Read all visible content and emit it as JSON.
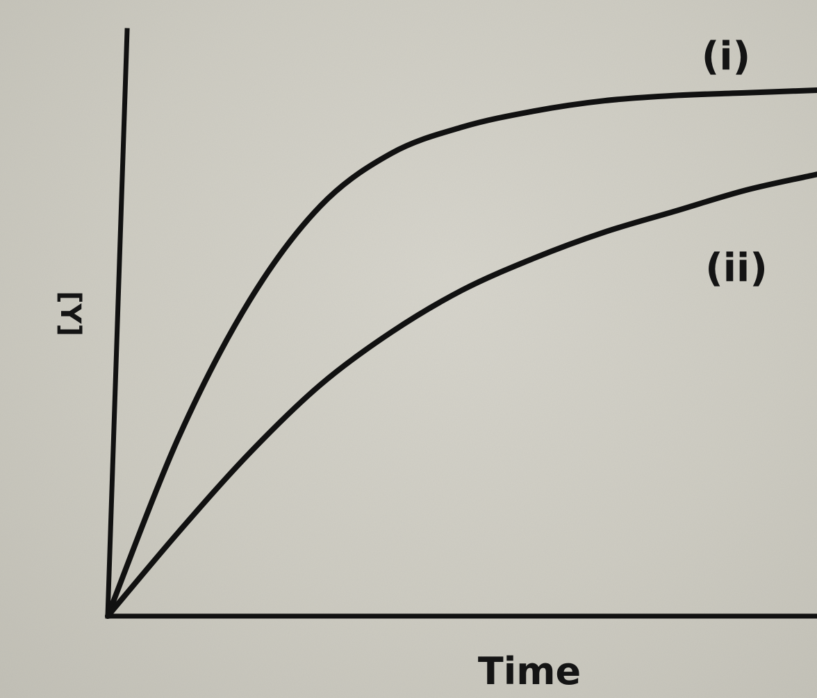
{
  "chart_data": {
    "type": "line",
    "xlabel": "Time",
    "ylabel": "[Y]",
    "xlim": [
      0,
      1
    ],
    "ylim": [
      0,
      1
    ],
    "grid": false,
    "legend": "none",
    "series": [
      {
        "name": "(i)",
        "x": [
          0,
          0.1,
          0.2,
          0.3,
          0.4,
          0.5,
          0.6,
          0.7,
          0.8,
          0.9,
          1.0
        ],
        "y": [
          0,
          0.34,
          0.6,
          0.78,
          0.88,
          0.93,
          0.96,
          0.98,
          0.99,
          0.995,
          1.0
        ]
      },
      {
        "name": "(ii)",
        "x": [
          0,
          0.1,
          0.2,
          0.3,
          0.4,
          0.5,
          0.6,
          0.7,
          0.8,
          0.9,
          1.0
        ],
        "y": [
          0,
          0.16,
          0.31,
          0.44,
          0.54,
          0.62,
          0.68,
          0.73,
          0.77,
          0.81,
          0.84
        ]
      }
    ]
  }
}
